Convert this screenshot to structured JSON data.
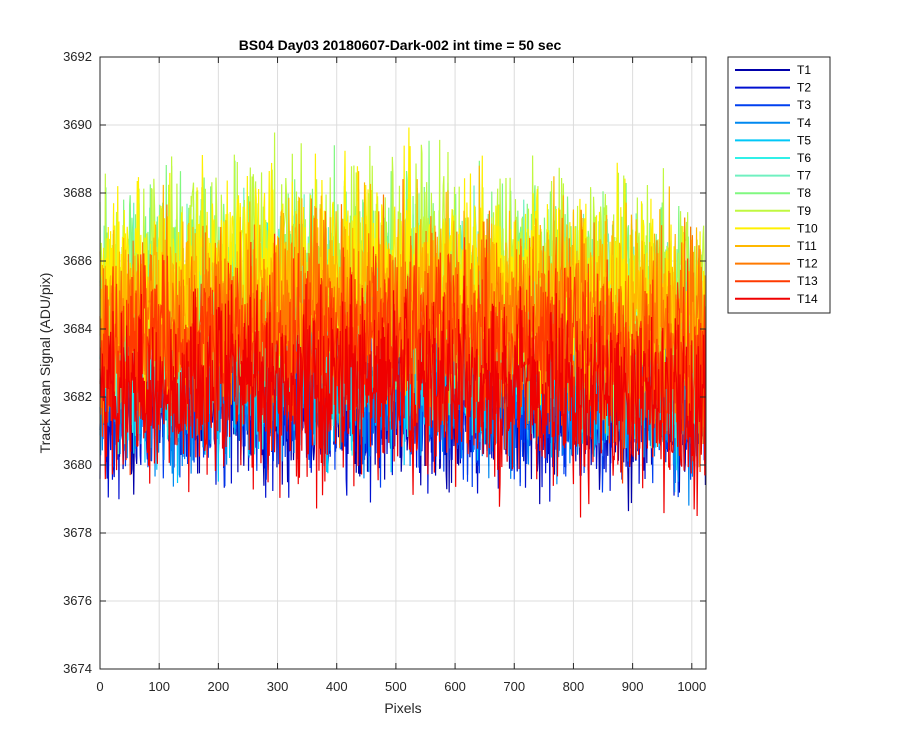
{
  "chart_data": {
    "type": "line",
    "title": "BS04 Day03 20180607-Dark-002 int time = 50 sec",
    "xlabel": "Pixels",
    "ylabel": "Track Mean Signal (ADU/pix)",
    "xlim": [
      0,
      1024
    ],
    "ylim": [
      3674,
      3692
    ],
    "xticks": [
      0,
      100,
      200,
      300,
      400,
      500,
      600,
      700,
      800,
      900,
      1000
    ],
    "yticks": [
      3674,
      3676,
      3678,
      3680,
      3682,
      3684,
      3686,
      3688,
      3690,
      3692
    ],
    "grid": true,
    "legend_position": "outside-right-top",
    "x_points": 1024,
    "series": [
      {
        "name": "T1",
        "color": "#0000AA",
        "center": [
          3681.8,
          3682.0,
          3681.6
        ],
        "spread": 2.4
      },
      {
        "name": "T2",
        "color": "#0010D0",
        "center": [
          3681.9,
          3682.1,
          3681.7
        ],
        "spread": 2.4
      },
      {
        "name": "T3",
        "color": "#0040F0",
        "center": [
          3682.0,
          3682.2,
          3681.8
        ],
        "spread": 2.4
      },
      {
        "name": "T4",
        "color": "#0088F0",
        "center": [
          3682.3,
          3682.5,
          3682.0
        ],
        "spread": 2.4
      },
      {
        "name": "T5",
        "color": "#00C8F8",
        "center": [
          3682.6,
          3682.9,
          3682.3
        ],
        "spread": 2.5
      },
      {
        "name": "T6",
        "color": "#30F0E8",
        "center": [
          3683.5,
          3684.0,
          3683.2
        ],
        "spread": 2.8
      },
      {
        "name": "T7",
        "color": "#70F0C0",
        "center": [
          3684.2,
          3684.8,
          3683.8
        ],
        "spread": 2.9
      },
      {
        "name": "T8",
        "color": "#80F880",
        "center": [
          3684.8,
          3685.4,
          3684.4
        ],
        "spread": 3.0
      },
      {
        "name": "T9",
        "color": "#C0F840",
        "center": [
          3685.2,
          3685.8,
          3684.8
        ],
        "spread": 3.0
      },
      {
        "name": "T10",
        "color": "#FFF000",
        "center": [
          3685.0,
          3685.6,
          3684.6
        ],
        "spread": 3.0
      },
      {
        "name": "T11",
        "color": "#FFB800",
        "center": [
          3684.4,
          3685.0,
          3684.0
        ],
        "spread": 2.9
      },
      {
        "name": "T12",
        "color": "#FF7A00",
        "center": [
          3683.8,
          3684.4,
          3683.4
        ],
        "spread": 2.8
      },
      {
        "name": "T13",
        "color": "#FF3A00",
        "center": [
          3683.0,
          3683.6,
          3682.6
        ],
        "spread": 2.6
      },
      {
        "name": "T14",
        "color": "#F00000",
        "center": [
          3682.0,
          3682.4,
          3681.6
        ],
        "spread": 2.6
      }
    ]
  }
}
